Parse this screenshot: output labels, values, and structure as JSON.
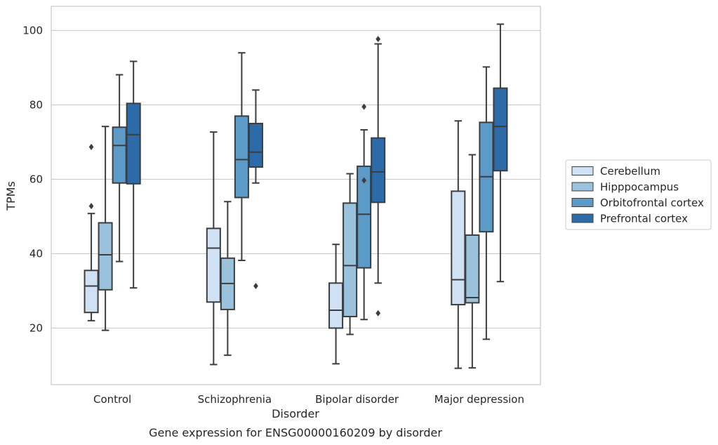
{
  "chart_data": {
    "type": "box",
    "xlabel": "Disorder",
    "ylabel": "TPMs",
    "caption": "Gene expression for ENSG00000160209 by disorder",
    "ylim": [
      4.8,
      106.5
    ],
    "yticks": [
      20,
      40,
      60,
      80,
      100
    ],
    "grid": "horizontal",
    "legend_position": "right",
    "categories": [
      "Control",
      "Schizophrenia",
      "Bipolar disorder",
      "Major depression"
    ],
    "series": [
      {
        "name": "Cerebellum",
        "color": "#cfe1f2",
        "boxes": [
          {
            "whislo": 22.0,
            "q1": 24.2,
            "med": 31.3,
            "q3": 35.5,
            "whishi": 50.8,
            "fliers": [
              52.8,
              68.7
            ]
          },
          {
            "whislo": 10.2,
            "q1": 27.0,
            "med": 41.5,
            "q3": 46.8,
            "whishi": 72.7,
            "fliers": []
          },
          {
            "whislo": 10.4,
            "q1": 20.0,
            "med": 24.8,
            "q3": 32.1,
            "whishi": 42.5,
            "fliers": []
          },
          {
            "whislo": 9.2,
            "q1": 26.3,
            "med": 33.0,
            "q3": 56.8,
            "whishi": 75.7,
            "fliers": []
          }
        ]
      },
      {
        "name": "Hipppocampus",
        "color": "#9ac2dc",
        "boxes": [
          {
            "whislo": 19.4,
            "q1": 30.3,
            "med": 39.7,
            "q3": 48.3,
            "whishi": 74.2,
            "fliers": []
          },
          {
            "whislo": 12.7,
            "q1": 25.0,
            "med": 32.0,
            "q3": 38.8,
            "whishi": 54.0,
            "fliers": []
          },
          {
            "whislo": 18.3,
            "q1": 23.1,
            "med": 36.8,
            "q3": 53.6,
            "whishi": 61.5,
            "fliers": []
          },
          {
            "whislo": 9.3,
            "q1": 26.8,
            "med": 28.2,
            "q3": 45.0,
            "whishi": 66.6,
            "fliers": []
          }
        ]
      },
      {
        "name": "Orbitofrontal cortex",
        "color": "#5c9ac8",
        "boxes": [
          {
            "whislo": 37.9,
            "q1": 59.0,
            "med": 69.1,
            "q3": 74.0,
            "whishi": 88.1,
            "fliers": []
          },
          {
            "whislo": 38.2,
            "q1": 55.1,
            "med": 65.3,
            "q3": 77.0,
            "whishi": 94.0,
            "fliers": []
          },
          {
            "whislo": 22.3,
            "q1": 36.2,
            "med": 50.6,
            "q3": 63.5,
            "whishi": 73.3,
            "fliers": [
              59.7,
              79.5
            ]
          },
          {
            "whislo": 17.0,
            "q1": 45.9,
            "med": 60.7,
            "q3": 75.3,
            "whishi": 90.2,
            "fliers": []
          }
        ]
      },
      {
        "name": "Prefrontal cortex",
        "color": "#2c6aa8",
        "boxes": [
          {
            "whislo": 30.8,
            "q1": 58.8,
            "med": 72.0,
            "q3": 80.4,
            "whishi": 91.7,
            "fliers": []
          },
          {
            "whislo": 59.0,
            "q1": 63.3,
            "med": 67.3,
            "q3": 75.0,
            "whishi": 84.0,
            "fliers": [
              31.3
            ]
          },
          {
            "whislo": 32.1,
            "q1": 53.8,
            "med": 62.0,
            "q3": 71.1,
            "whishi": 96.4,
            "fliers": [
              24.0,
              97.7
            ]
          },
          {
            "whislo": 32.5,
            "q1": 62.3,
            "med": 74.2,
            "q3": 84.5,
            "whishi": 101.7,
            "fliers": []
          }
        ]
      }
    ]
  }
}
